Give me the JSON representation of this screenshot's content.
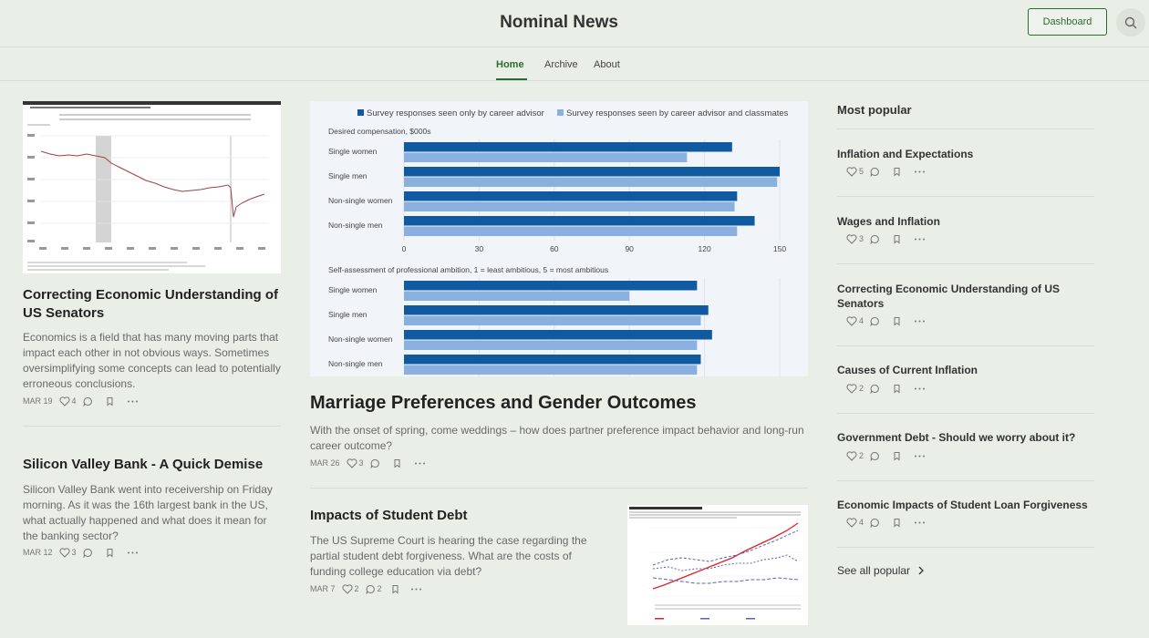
{
  "header": {
    "site_title": "Nominal News",
    "dashboard_label": "Dashboard",
    "search_icon": "search-icon"
  },
  "nav": {
    "tabs": [
      "Home",
      "Archive",
      "About"
    ],
    "active": "Home"
  },
  "left_posts": [
    {
      "title": "Correcting Economic Understanding of US Senators",
      "description": "Economics is a field that has many moving parts that impact each other in not obvious ways. Sometimes oversimplifying some concepts can lead to potentially erroneous conclusions.",
      "date": "MAR 19",
      "likes": "4"
    },
    {
      "title": "Silicon Valley Bank - A Quick Demise",
      "description": "Silicon Valley Bank went into receivership on Friday morning. As it was the 16th largest bank in the US, what actually happened and what does it mean for the banking sector?",
      "date": "MAR 12",
      "likes": "3"
    }
  ],
  "featured": {
    "title": "Marriage Preferences and Gender Outcomes",
    "description": "With the onset of spring, come weddings – how does partner preference impact behavior and long-run career outcome?",
    "date": "MAR 26",
    "likes": "3"
  },
  "second_post": {
    "title": "Impacts of Student Debt",
    "description": "The US Supreme Court is hearing the case regarding the partial student debt forgiveness. What are the costs of funding college education via debt?",
    "date": "MAR 7",
    "likes": "2",
    "comments": "2"
  },
  "most_popular": {
    "heading": "Most popular",
    "see_all": "See all popular",
    "items": [
      {
        "title": "Inflation and Expectations",
        "likes": "5"
      },
      {
        "title": "Wages and Inflation",
        "likes": "3"
      },
      {
        "title": "Correcting Economic Understanding of US Senators",
        "likes": "4"
      },
      {
        "title": "Causes of Current Inflation",
        "likes": "2"
      },
      {
        "title": "Government Debt - Should we worry about it?",
        "likes": "2"
      },
      {
        "title": "Economic Impacts of Student Loan Forgiveness",
        "likes": "4"
      }
    ]
  },
  "chart_data": [
    {
      "type": "bar",
      "legend": [
        "Survey responses seen only by career advisor",
        "Survey responses seen by career advisor and classmates"
      ],
      "title": "Desired compensation, $000s",
      "categories": [
        "Single women",
        "Single men",
        "Non-single women",
        "Non-single men"
      ],
      "series": [
        {
          "name": "Survey responses seen only by career advisor",
          "values": [
            131,
            150,
            133,
            140
          ]
        },
        {
          "name": "Survey responses seen by career advisor and classmates",
          "values": [
            113,
            149,
            132,
            133
          ]
        }
      ],
      "xticks": [
        "0",
        "30",
        "60",
        "90",
        "120",
        "150"
      ],
      "xlim": [
        0,
        150
      ]
    },
    {
      "type": "bar",
      "title": "Self-assessment of professional ambition, 1 = least ambitious, 5 = most ambitious",
      "categories": [
        "Single women",
        "Single men",
        "Non-single women",
        "Non-single men"
      ],
      "series": [
        {
          "name": "Survey responses seen only by career advisor",
          "values": [
            3.9,
            4.05,
            4.1,
            3.95
          ]
        },
        {
          "name": "Survey responses seen by career advisor and classmates",
          "values": [
            3.0,
            3.95,
            3.9,
            3.9
          ]
        }
      ],
      "xlim": [
        0,
        5
      ]
    }
  ]
}
